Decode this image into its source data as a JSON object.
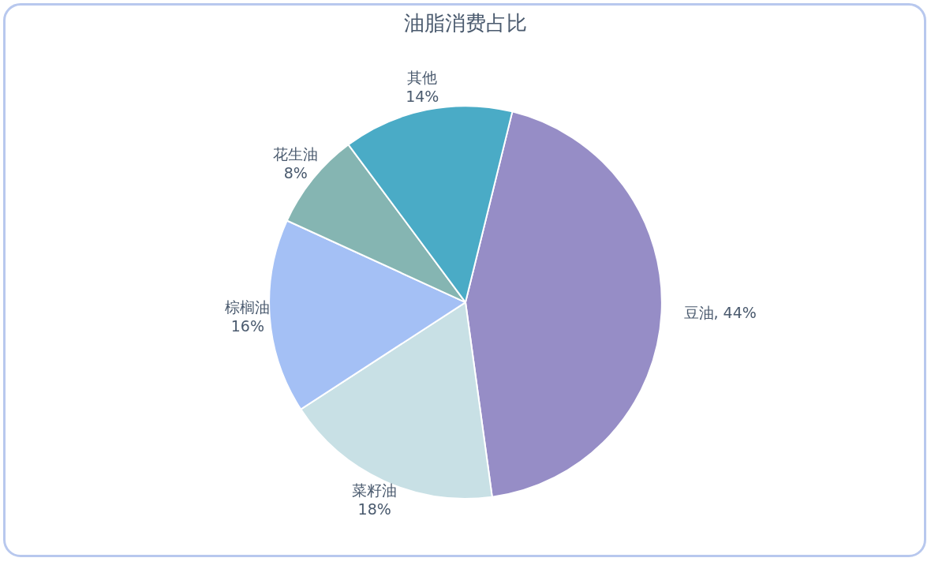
{
  "chart_data": {
    "type": "pie",
    "title": "油脂消费占比",
    "categories": [
      "豆油",
      "菜籽油",
      "棕榈油",
      "花生油",
      "其他"
    ],
    "values": [
      44,
      18,
      16,
      8,
      14
    ],
    "value_labels": [
      "44%",
      "18%",
      "16%",
      "8%",
      "14%"
    ],
    "colors": [
      "#968dc6",
      "#c8e0e5",
      "#a4c0f5",
      "#85b5b2",
      "#4aabc6"
    ],
    "legend": false
  }
}
